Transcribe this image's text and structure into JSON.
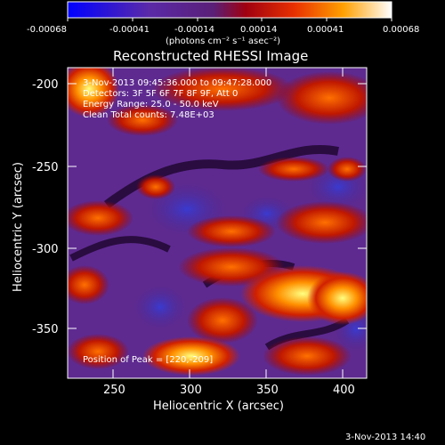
{
  "colorbar": {
    "ticks": [
      "-0.00068",
      "-0.00041",
      "-0.00014",
      "0.00014",
      "0.00041",
      "0.00068"
    ],
    "units": "(photons cm⁻² s⁻¹ asec⁻²)"
  },
  "plot": {
    "title": "Reconstructed RHESSI Image",
    "xlabel": "Heliocentric X (arcsec)",
    "ylabel": "Heliocentric Y (arcsec)",
    "xticks": [
      "250",
      "300",
      "350",
      "400"
    ],
    "yticks": [
      "-200",
      "-250",
      "-300",
      "-350"
    ],
    "annotations": [
      "3-Nov-2013 09:45:36.000 to 09:47:28.000",
      "Detectors: 3F 5F 6F 7F 8F 9F, Att 0",
      "Energy Range: 25.0 - 50.0 keV",
      "Clean    Total counts: 7.48E+03"
    ],
    "peak_label": "Position of Peak = [220,-209]"
  },
  "footer": {
    "timestamp": "3-Nov-2013 14:40"
  },
  "chart_data": {
    "type": "heatmap",
    "title": "Reconstructed RHESSI Image",
    "xlabel": "Heliocentric X (arcsec)",
    "ylabel": "Heliocentric Y (arcsec)",
    "xlim": [
      220,
      412
    ],
    "ylim": [
      -385,
      -189
    ],
    "colorscale_range": [
      -0.00068,
      0.00068
    ],
    "colormap": "blue-purple-red-yellow-white",
    "peak": [
      220,
      -209
    ]
  }
}
